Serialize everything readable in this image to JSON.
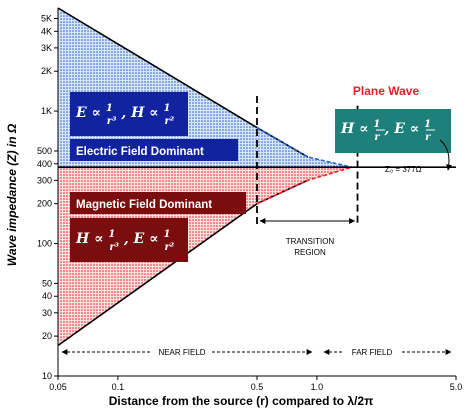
{
  "chart_data": {
    "type": "area",
    "xscale": "log",
    "yscale": "log",
    "xlim": [
      0.05,
      5.0
    ],
    "ylim": [
      10,
      6000
    ],
    "x_ticks": [
      "0.05",
      "0.1",
      "0.5",
      "1.0",
      "5.0"
    ],
    "y_ticks": [
      "5K",
      "4K",
      "3K",
      "2K",
      "1K",
      "500",
      "400",
      "300",
      "200",
      "100",
      "50",
      "40",
      "30",
      "20",
      "10"
    ],
    "xlabel": "Distance from the source (r) compared to λ/2π",
    "ylabel": "Wave impedance (Z) in Ω",
    "series": [
      {
        "name": "Electric Field Dominant",
        "color": "#2a64c8",
        "points": [
          [
            0.05,
            6000
          ],
          [
            0.5,
            750
          ],
          [
            0.9,
            450
          ],
          [
            1.5,
            377
          ]
        ]
      },
      {
        "name": "Magnetic Field Dominant",
        "color": "#e8202a",
        "points": [
          [
            0.05,
            17
          ],
          [
            0.5,
            200
          ],
          [
            0.9,
            300
          ],
          [
            1.5,
            377
          ]
        ]
      }
    ],
    "reference_line": {
      "label": "Z₀ = 377Ω",
      "y": 377
    },
    "annotations": {
      "plane_wave": "Plane Wave",
      "electric_box": "Electric Field Dominant",
      "magnetic_box": "Magnetic Field Dominant",
      "transition": [
        "TRANSITION",
        "REGION"
      ],
      "near_field": "NEAR FIELD",
      "far_field": "FAR FIELD",
      "e_formula_1": "E ∝ 1/r³, H ∝ 1/r²",
      "m_formula_1": "H ∝ 1/r³, E ∝ 1/r²",
      "plane_formula": "H ∝ 1/r, E ∝ 1/r"
    }
  },
  "colors": {
    "electric": "#2a64c8",
    "magnetic": "#e8202a",
    "electric_box": "#12239f",
    "magnetic_box": "#7a0d0d",
    "plane_box": "#1f7f7a"
  }
}
